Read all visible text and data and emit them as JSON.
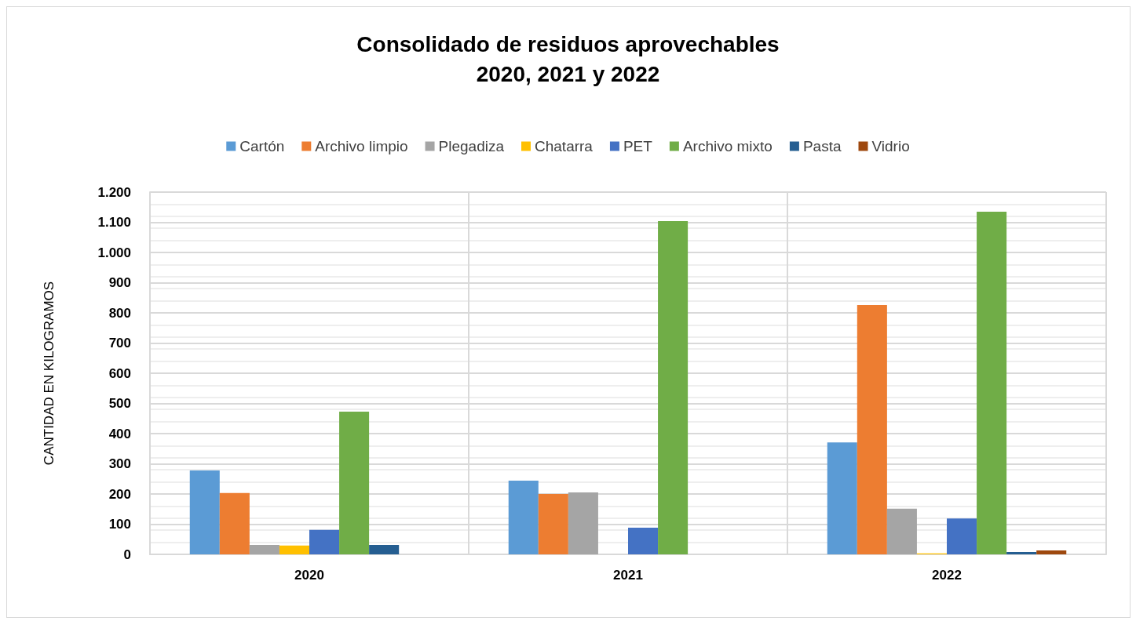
{
  "chart_data": {
    "type": "bar",
    "title": "Consolidado de residuos aprovechables\n2020, 2021 y 2022",
    "ylabel": "CANTIDAD EN KILOGRAMOS",
    "categories": [
      "2020",
      "2021",
      "2022"
    ],
    "series": [
      {
        "name": "Cartón",
        "color": "#5b9bd5",
        "values": [
          278,
          244,
          371
        ]
      },
      {
        "name": "Archivo limpio",
        "color": "#ed7d31",
        "values": [
          203,
          200,
          826
        ]
      },
      {
        "name": "Plegadiza",
        "color": "#a5a5a5",
        "values": [
          31,
          205,
          151
        ]
      },
      {
        "name": "Chatarra",
        "color": "#ffc000",
        "values": [
          29,
          0,
          3
        ]
      },
      {
        "name": "PET",
        "color": "#4472c4",
        "values": [
          81,
          88,
          119
        ]
      },
      {
        "name": "Archivo mixto",
        "color": "#70ad47",
        "values": [
          473,
          1104,
          1135
        ]
      },
      {
        "name": "Pasta",
        "color": "#255e91",
        "values": [
          31,
          0,
          8
        ]
      },
      {
        "name": "Vidrio",
        "color": "#9e480e",
        "values": [
          0,
          0,
          13
        ]
      }
    ],
    "ylim": [
      0,
      1200
    ],
    "yticks": [
      0,
      100,
      200,
      300,
      400,
      500,
      600,
      700,
      800,
      900,
      {
        "value": 1000,
        "label": "1.000"
      },
      {
        "value": 1100,
        "label": "1.100"
      },
      {
        "value": 1200,
        "label": "1.200"
      }
    ],
    "grid": true,
    "legend": "top"
  }
}
